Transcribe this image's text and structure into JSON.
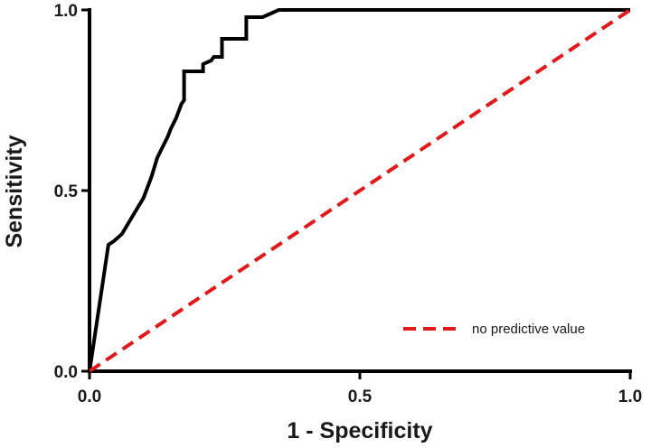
{
  "chart_data": {
    "type": "line",
    "title": "",
    "xlabel": "1 - Specificity",
    "ylabel": "Sensitivity",
    "xlim": [
      0.0,
      1.0
    ],
    "ylim": [
      0.0,
      1.0
    ],
    "x_ticks": [
      "0.0",
      "0.5",
      "1.0"
    ],
    "y_ticks": [
      "0.0",
      "0.5",
      "1.0"
    ],
    "grid": false,
    "legend_position": "bottom-right",
    "series": [
      {
        "name": "",
        "color": "#000000",
        "style": "solid",
        "points": [
          [
            0.0,
            0.0
          ],
          [
            0.035,
            0.35
          ],
          [
            0.045,
            0.36
          ],
          [
            0.06,
            0.38
          ],
          [
            0.08,
            0.43
          ],
          [
            0.1,
            0.48
          ],
          [
            0.115,
            0.54
          ],
          [
            0.125,
            0.59
          ],
          [
            0.135,
            0.62
          ],
          [
            0.145,
            0.65
          ],
          [
            0.15,
            0.67
          ],
          [
            0.16,
            0.7
          ],
          [
            0.17,
            0.74
          ],
          [
            0.175,
            0.75
          ],
          [
            0.175,
            0.83
          ],
          [
            0.2,
            0.83
          ],
          [
            0.21,
            0.83
          ],
          [
            0.21,
            0.85
          ],
          [
            0.225,
            0.86
          ],
          [
            0.23,
            0.87
          ],
          [
            0.245,
            0.87
          ],
          [
            0.245,
            0.92
          ],
          [
            0.28,
            0.92
          ],
          [
            0.29,
            0.92
          ],
          [
            0.29,
            0.98
          ],
          [
            0.32,
            0.98
          ],
          [
            0.335,
            0.99
          ],
          [
            0.35,
            1.0
          ],
          [
            1.0,
            1.0
          ]
        ]
      },
      {
        "name": "no predictive value",
        "color": "#e01a1a",
        "style": "dashed",
        "points": [
          [
            0.0,
            0.0
          ],
          [
            1.0,
            1.0
          ]
        ]
      }
    ]
  }
}
